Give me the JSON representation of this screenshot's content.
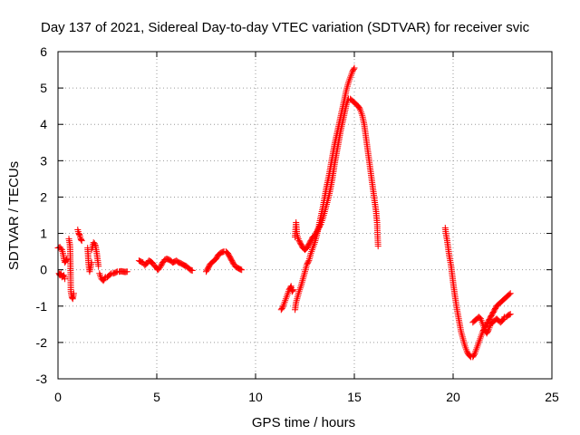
{
  "colors": {
    "series": "#ff0000",
    "grid": "#9a9a9a",
    "axis": "#000000",
    "background": "#ffffff"
  },
  "chart_data": {
    "type": "scatter",
    "title": "Day 137 of 2021, Sidereal Day-to-day VTEC variation (SDTVAR) for receiver svic",
    "xlabel": "GPS time / hours",
    "ylabel": "SDTVAR / TECUs",
    "xlim": [
      0,
      25
    ],
    "ylim": [
      -3,
      6
    ],
    "xticks": [
      0,
      5,
      10,
      15,
      20,
      25
    ],
    "yticks": [
      -3,
      -2,
      -1,
      0,
      1,
      2,
      3,
      4,
      5,
      6
    ],
    "grid": true,
    "marker": "+",
    "series": [
      {
        "name": "SDTVAR",
        "color": "#ff0000",
        "segments": [
          [
            [
              0.0,
              0.6
            ],
            [
              0.1,
              0.62
            ],
            [
              0.2,
              0.55
            ],
            [
              0.25,
              0.45
            ],
            [
              0.3,
              0.3
            ],
            [
              0.35,
              0.2
            ],
            [
              0.4,
              0.25
            ],
            [
              0.45,
              0.3
            ]
          ],
          [
            [
              0.05,
              -0.1
            ],
            [
              0.1,
              -0.15
            ],
            [
              0.15,
              -0.1
            ],
            [
              0.2,
              -0.2
            ],
            [
              0.3,
              -0.15
            ],
            [
              0.35,
              -0.25
            ]
          ],
          [
            [
              0.55,
              0.85
            ],
            [
              0.6,
              0.7
            ],
            [
              0.62,
              0.5
            ],
            [
              0.65,
              -0.6
            ],
            [
              0.7,
              -0.75
            ],
            [
              0.75,
              -0.8
            ],
            [
              0.8,
              -0.65
            ]
          ],
          [
            [
              1.0,
              1.1
            ],
            [
              1.05,
              1.0
            ],
            [
              1.1,
              0.95
            ],
            [
              1.15,
              0.85
            ],
            [
              1.2,
              0.8
            ]
          ],
          [
            [
              1.5,
              0.6
            ],
            [
              1.55,
              0.15
            ],
            [
              1.6,
              -0.05
            ],
            [
              1.7,
              0.2
            ]
          ],
          [
            [
              1.7,
              0.55
            ],
            [
              1.75,
              0.65
            ],
            [
              1.8,
              0.75
            ],
            [
              1.85,
              0.72
            ],
            [
              1.9,
              0.65
            ],
            [
              1.95,
              0.5
            ],
            [
              2.0,
              0.3
            ],
            [
              2.05,
              0.1
            ]
          ],
          [
            [
              2.1,
              -0.1
            ],
            [
              2.2,
              -0.25
            ],
            [
              2.3,
              -0.3
            ],
            [
              2.4,
              -0.2
            ],
            [
              2.5,
              -0.2
            ],
            [
              2.6,
              -0.15
            ],
            [
              2.7,
              -0.1
            ],
            [
              2.8,
              -0.1
            ],
            [
              2.9,
              -0.08
            ],
            [
              3.0,
              -0.05
            ],
            [
              3.1,
              -0.05
            ],
            [
              3.2,
              -0.04
            ],
            [
              3.3,
              -0.05
            ],
            [
              3.4,
              -0.06
            ],
            [
              3.5,
              -0.05
            ]
          ],
          [
            [
              4.1,
              0.25
            ],
            [
              4.2,
              0.22
            ],
            [
              4.3,
              0.2
            ],
            [
              4.4,
              0.12
            ],
            [
              4.5,
              0.18
            ],
            [
              4.6,
              0.25
            ],
            [
              4.7,
              0.22
            ],
            [
              4.8,
              0.18
            ],
            [
              4.9,
              0.1
            ],
            [
              5.0,
              0.05
            ],
            [
              5.05,
              0.0
            ],
            [
              5.1,
              0.02
            ],
            [
              5.2,
              0.1
            ],
            [
              5.3,
              0.2
            ],
            [
              5.4,
              0.27
            ],
            [
              5.5,
              0.3
            ],
            [
              5.6,
              0.28
            ],
            [
              5.7,
              0.25
            ],
            [
              5.8,
              0.2
            ],
            [
              5.9,
              0.22
            ],
            [
              6.0,
              0.25
            ],
            [
              6.1,
              0.2
            ],
            [
              6.2,
              0.18
            ],
            [
              6.3,
              0.15
            ],
            [
              6.4,
              0.12
            ],
            [
              6.5,
              0.1
            ],
            [
              6.6,
              0.05
            ],
            [
              6.7,
              0.0
            ],
            [
              6.8,
              -0.02
            ]
          ],
          [
            [
              7.5,
              -0.05
            ],
            [
              7.6,
              0.05
            ],
            [
              7.7,
              0.15
            ],
            [
              7.8,
              0.2
            ],
            [
              7.9,
              0.25
            ],
            [
              8.0,
              0.3
            ],
            [
              8.1,
              0.4
            ],
            [
              8.2,
              0.45
            ],
            [
              8.3,
              0.48
            ],
            [
              8.4,
              0.5
            ],
            [
              8.5,
              0.5
            ],
            [
              8.6,
              0.45
            ],
            [
              8.7,
              0.35
            ],
            [
              8.8,
              0.25
            ],
            [
              8.9,
              0.15
            ],
            [
              9.0,
              0.08
            ],
            [
              9.1,
              0.05
            ],
            [
              9.2,
              0.02
            ],
            [
              9.3,
              0.0
            ]
          ],
          [
            [
              11.3,
              -1.1
            ],
            [
              11.4,
              -1.0
            ],
            [
              11.5,
              -0.85
            ],
            [
              11.6,
              -0.7
            ],
            [
              11.7,
              -0.55
            ],
            [
              11.8,
              -0.45
            ],
            [
              11.85,
              -0.6
            ],
            [
              11.9,
              -0.55
            ]
          ],
          [
            [
              12.0,
              -1.1
            ],
            [
              12.05,
              -0.9
            ],
            [
              12.1,
              -0.8
            ],
            [
              12.2,
              -0.6
            ],
            [
              12.3,
              -0.45
            ],
            [
              12.4,
              -0.25
            ],
            [
              12.5,
              -0.05
            ],
            [
              12.6,
              0.15
            ],
            [
              12.7,
              0.25
            ],
            [
              12.8,
              0.45
            ],
            [
              12.9,
              0.6
            ],
            [
              13.0,
              0.75
            ],
            [
              13.1,
              0.95
            ],
            [
              13.2,
              1.2
            ],
            [
              13.3,
              1.45
            ],
            [
              13.4,
              1.7
            ],
            [
              13.5,
              2.0
            ],
            [
              13.6,
              2.3
            ],
            [
              13.7,
              2.55
            ],
            [
              13.8,
              2.85
            ],
            [
              13.9,
              3.15
            ],
            [
              14.0,
              3.45
            ],
            [
              14.1,
              3.7
            ],
            [
              14.2,
              3.95
            ],
            [
              14.3,
              4.2
            ],
            [
              14.4,
              4.45
            ],
            [
              14.5,
              4.7
            ],
            [
              14.6,
              4.95
            ],
            [
              14.7,
              5.15
            ],
            [
              14.8,
              5.3
            ],
            [
              14.9,
              5.45
            ],
            [
              15.0,
              5.55
            ]
          ],
          [
            [
              12.0,
              0.9
            ],
            [
              12.05,
              1.3
            ],
            [
              12.1,
              0.95
            ],
            [
              12.2,
              0.8
            ],
            [
              12.3,
              0.7
            ],
            [
              12.4,
              0.6
            ],
            [
              12.5,
              0.55
            ],
            [
              12.6,
              0.6
            ],
            [
              12.7,
              0.7
            ],
            [
              12.8,
              0.8
            ],
            [
              12.9,
              0.9
            ],
            [
              13.0,
              0.95
            ],
            [
              13.1,
              1.05
            ],
            [
              13.2,
              1.15
            ],
            [
              13.3,
              1.25
            ],
            [
              13.4,
              1.4
            ],
            [
              13.5,
              1.6
            ],
            [
              13.6,
              1.8
            ],
            [
              13.7,
              2.0
            ],
            [
              13.8,
              2.25
            ],
            [
              13.9,
              2.55
            ],
            [
              14.0,
              2.9
            ],
            [
              14.1,
              3.2
            ],
            [
              14.2,
              3.5
            ],
            [
              14.3,
              3.8
            ],
            [
              14.4,
              4.05
            ],
            [
              14.5,
              4.3
            ],
            [
              14.6,
              4.55
            ],
            [
              14.7,
              4.7
            ],
            [
              14.8,
              4.7
            ],
            [
              14.9,
              4.65
            ],
            [
              15.0,
              4.6
            ],
            [
              15.1,
              4.55
            ],
            [
              15.2,
              4.5
            ],
            [
              15.3,
              4.4
            ],
            [
              15.4,
              4.25
            ],
            [
              15.5,
              4.0
            ],
            [
              15.6,
              3.6
            ],
            [
              15.7,
              3.2
            ],
            [
              15.8,
              2.8
            ],
            [
              15.9,
              2.4
            ],
            [
              16.0,
              2.0
            ],
            [
              16.1,
              1.6
            ],
            [
              16.15,
              1.3
            ],
            [
              16.2,
              0.65
            ]
          ],
          [
            [
              19.6,
              1.15
            ],
            [
              19.65,
              0.95
            ],
            [
              19.7,
              0.8
            ],
            [
              19.75,
              0.6
            ],
            [
              19.8,
              0.4
            ],
            [
              19.9,
              0.1
            ],
            [
              20.0,
              -0.35
            ],
            [
              20.1,
              -0.75
            ],
            [
              20.2,
              -1.1
            ],
            [
              20.3,
              -1.4
            ],
            [
              20.4,
              -1.7
            ],
            [
              20.5,
              -1.9
            ],
            [
              20.6,
              -2.1
            ],
            [
              20.7,
              -2.25
            ],
            [
              20.8,
              -2.35
            ],
            [
              20.9,
              -2.4
            ],
            [
              21.0,
              -2.4
            ],
            [
              21.1,
              -2.3
            ],
            [
              21.2,
              -2.15
            ],
            [
              21.3,
              -2.0
            ],
            [
              21.4,
              -1.85
            ],
            [
              21.5,
              -1.7
            ],
            [
              21.6,
              -1.6
            ],
            [
              21.7,
              -1.5
            ],
            [
              21.8,
              -1.4
            ],
            [
              21.9,
              -1.3
            ],
            [
              22.0,
              -1.2
            ],
            [
              22.1,
              -1.1
            ],
            [
              22.2,
              -1.0
            ],
            [
              22.3,
              -0.95
            ],
            [
              22.4,
              -0.9
            ],
            [
              22.5,
              -0.85
            ],
            [
              22.6,
              -0.8
            ],
            [
              22.7,
              -0.75
            ],
            [
              22.8,
              -0.7
            ],
            [
              22.9,
              -0.65
            ]
          ],
          [
            [
              21.0,
              -1.45
            ],
            [
              21.1,
              -1.4
            ],
            [
              21.2,
              -1.35
            ],
            [
              21.3,
              -1.3
            ],
            [
              21.4,
              -1.35
            ],
            [
              21.5,
              -1.5
            ],
            [
              21.6,
              -1.65
            ],
            [
              21.7,
              -1.75
            ],
            [
              21.8,
              -1.65
            ],
            [
              21.9,
              -1.5
            ],
            [
              22.0,
              -1.45
            ],
            [
              22.1,
              -1.4
            ],
            [
              22.2,
              -1.35
            ],
            [
              22.3,
              -1.4
            ],
            [
              22.4,
              -1.45
            ],
            [
              22.5,
              -1.4
            ],
            [
              22.6,
              -1.3
            ],
            [
              22.7,
              -1.3
            ],
            [
              22.8,
              -1.25
            ],
            [
              22.9,
              -1.22
            ]
          ]
        ]
      }
    ]
  }
}
